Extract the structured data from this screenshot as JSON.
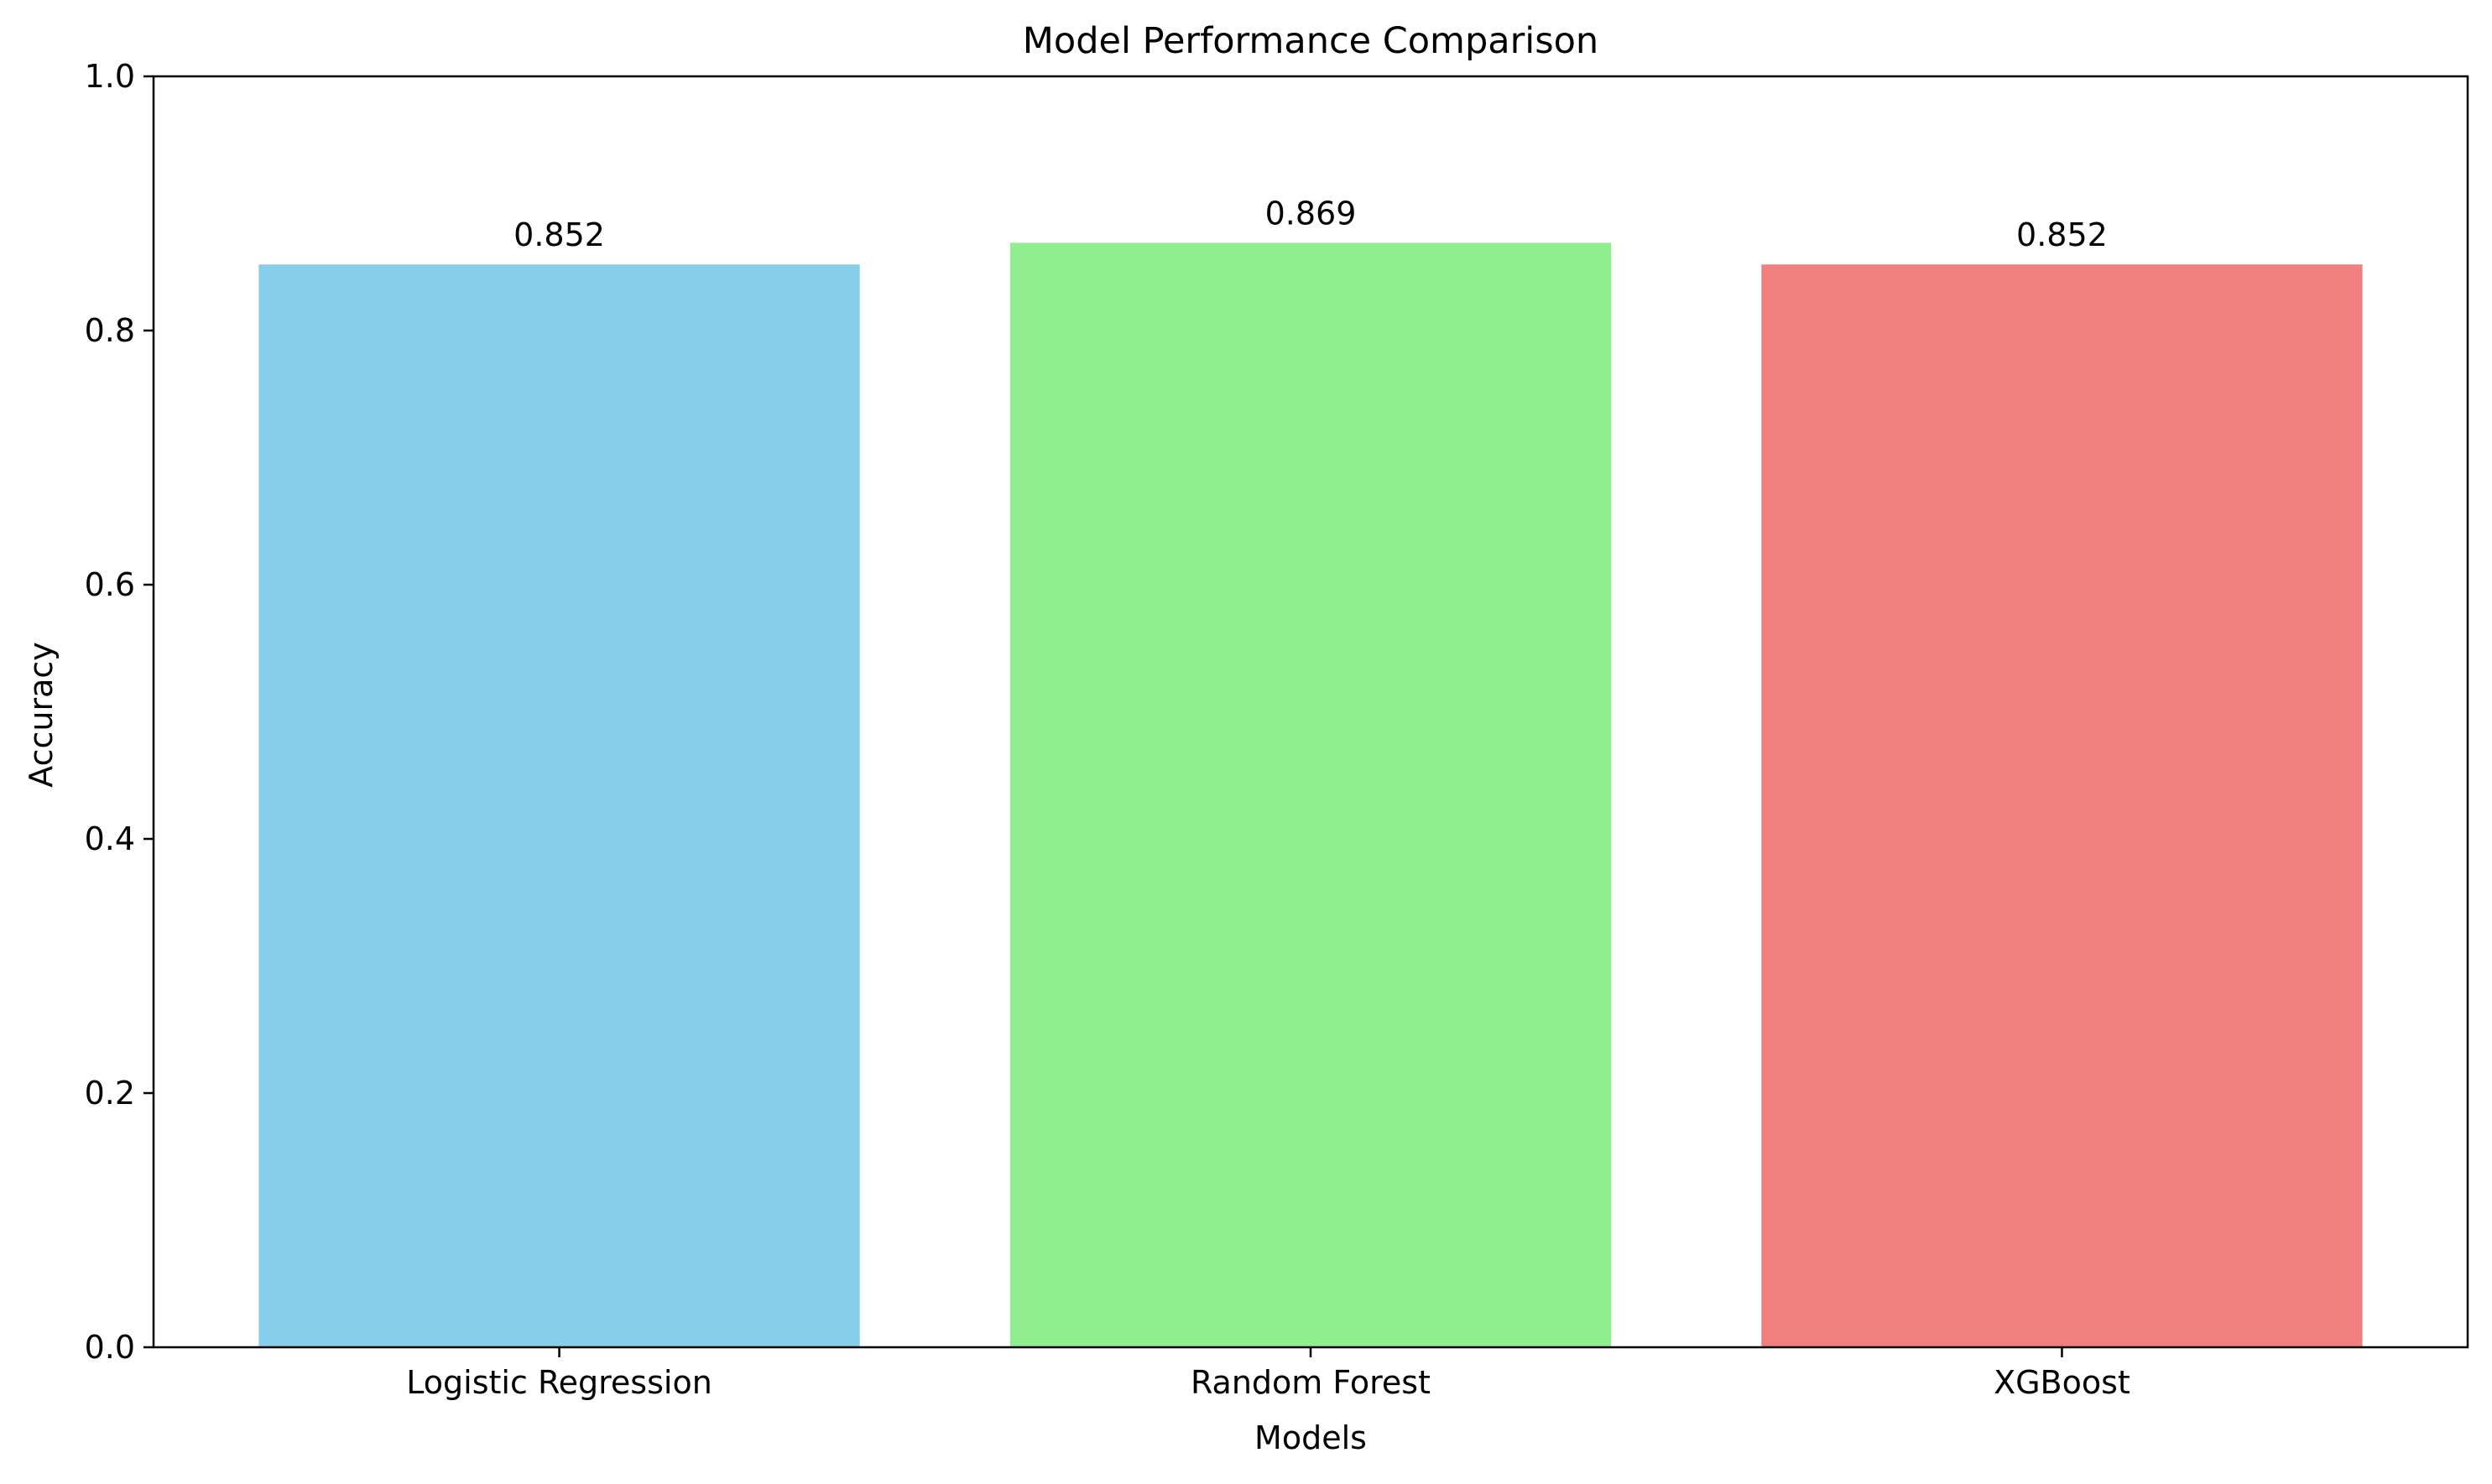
{
  "chart_data": {
    "type": "bar",
    "title": "Model Performance Comparison",
    "xlabel": "Models",
    "ylabel": "Accuracy",
    "categories": [
      "Logistic Regression",
      "Random Forest",
      "XGBoost"
    ],
    "values": [
      0.852,
      0.869,
      0.852
    ],
    "value_labels": [
      "0.852",
      "0.869",
      "0.852"
    ],
    "colors": [
      "#87ceeb",
      "#90ee90",
      "#f08080"
    ],
    "ylim": [
      0,
      1.0
    ],
    "yticks": [
      0.0,
      0.2,
      0.4,
      0.6,
      0.8,
      1.0
    ],
    "ytick_labels": [
      "0.0",
      "0.2",
      "0.4",
      "0.6",
      "0.8",
      "1.0"
    ],
    "grid": false,
    "legend": "none"
  }
}
